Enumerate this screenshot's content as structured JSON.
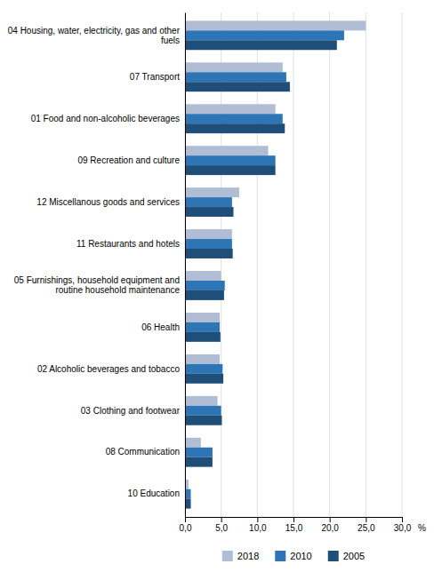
{
  "chart_data": {
    "type": "bar",
    "orientation": "horizontal",
    "categories": [
      "04 Housing, water, electricity, gas and other\nfuels",
      "07 Transport",
      "01 Food and non-alcoholic beverages",
      "09 Recreation and culture",
      "12 Miscellanous goods and services",
      "11 Restaurants and hotels",
      "05 Furnishings, household equipment and\nroutine household maintenance",
      "06 Health",
      "02 Alcoholic beverages and tobacco",
      "03 Clothing and footwear",
      "08 Communication",
      "10 Education"
    ],
    "series": [
      {
        "name": "2018",
        "color": "#b0bdd4",
        "values": [
          25.0,
          13.5,
          12.5,
          11.5,
          7.5,
          6.5,
          5.0,
          4.8,
          4.8,
          4.5,
          2.2,
          0.5
        ]
      },
      {
        "name": "2010",
        "color": "#2e75b6",
        "values": [
          22.0,
          14.0,
          13.5,
          12.5,
          6.5,
          6.5,
          5.5,
          4.8,
          5.2,
          5.0,
          3.8,
          0.8
        ]
      },
      {
        "name": "2005",
        "color": "#1f4e79",
        "values": [
          21.0,
          14.5,
          13.8,
          12.5,
          6.7,
          6.6,
          5.4,
          4.9,
          5.3,
          5.1,
          3.8,
          0.8
        ]
      }
    ],
    "xlabel": "%",
    "xlim": [
      0,
      30
    ],
    "xticks": [
      {
        "value": 0,
        "label": "0,0"
      },
      {
        "value": 5,
        "label": "5,0"
      },
      {
        "value": 10,
        "label": "10,0"
      },
      {
        "value": 15,
        "label": "15,0"
      },
      {
        "value": 20,
        "label": "20,0"
      },
      {
        "value": 25,
        "label": "25,0"
      },
      {
        "value": 30,
        "label": "30,0"
      }
    ],
    "grid": true,
    "legend": "bottom"
  }
}
